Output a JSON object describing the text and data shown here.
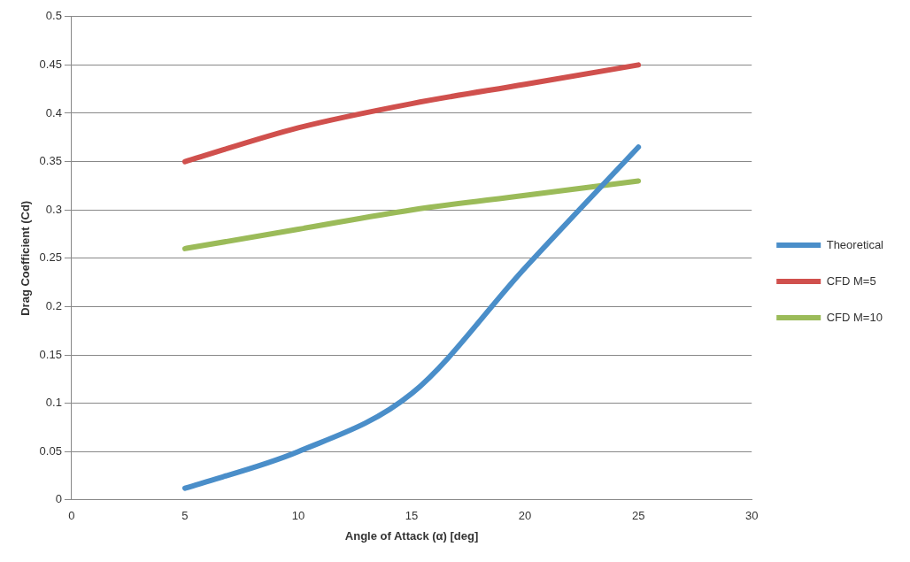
{
  "chart_data": {
    "type": "line",
    "xlabel": "Angle of Attack (α) [deg]",
    "ylabel": "Drag Coefficient (Cd)",
    "x": [
      5,
      10,
      15,
      20,
      25
    ],
    "series": [
      {
        "name": "Theoretical",
        "color": "#4a8ec9",
        "values": [
          0.012,
          0.05,
          0.11,
          0.24,
          0.365
        ]
      },
      {
        "name": "CFD M=5",
        "color": "#d0504d",
        "values": [
          0.35,
          0.385,
          0.41,
          0.43,
          0.45
        ]
      },
      {
        "name": "CFD M=10",
        "color": "#9bbb59",
        "values": [
          0.26,
          0.28,
          0.3,
          0.315,
          0.33
        ]
      }
    ],
    "xlim": [
      0,
      30
    ],
    "xticks": [
      0,
      5,
      10,
      15,
      20,
      25,
      30
    ],
    "ylim": [
      0,
      0.5
    ],
    "yticks": [
      0,
      0.05,
      0.1,
      0.15,
      0.2,
      0.25,
      0.3,
      0.35,
      0.4,
      0.45,
      0.5
    ],
    "grid": "y",
    "legend": "right",
    "marker": "none",
    "line_style": "solid"
  }
}
